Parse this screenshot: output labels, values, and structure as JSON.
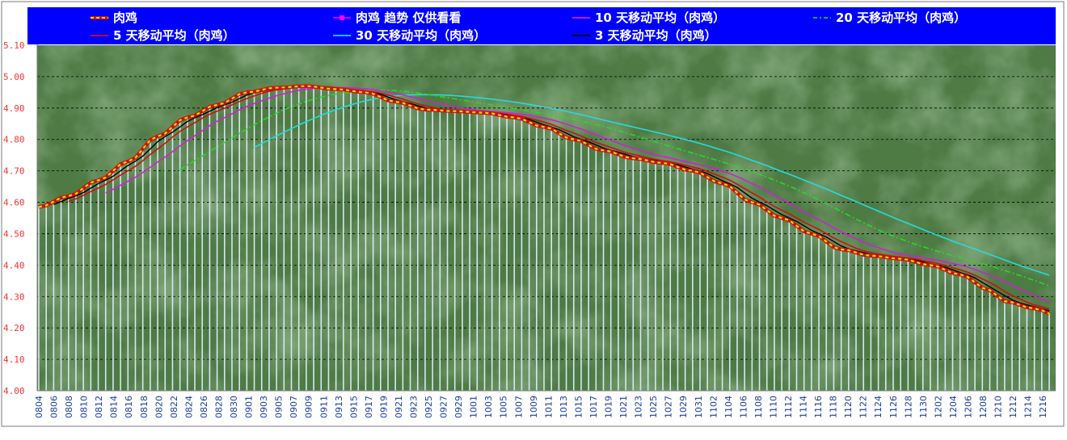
{
  "chart_data": {
    "type": "line",
    "y_range": [
      4.0,
      5.1
    ],
    "y_ticks": [
      "4.00",
      "4.10",
      "4.20",
      "4.30",
      "4.40",
      "4.50",
      "4.60",
      "4.70",
      "4.80",
      "4.90",
      "5.00",
      "5.10"
    ],
    "x_ticks": [
      "0804",
      "0806",
      "0808",
      "0810",
      "0812",
      "0814",
      "0816",
      "0818",
      "0820",
      "0822",
      "0824",
      "0826",
      "0828",
      "0830",
      "0901",
      "0903",
      "0905",
      "0907",
      "0909",
      "0911",
      "0913",
      "0915",
      "0917",
      "0919",
      "0921",
      "0923",
      "0925",
      "0927",
      "0929",
      "1001",
      "1003",
      "1005",
      "1007",
      "1009",
      "1011",
      "1013",
      "1015",
      "1017",
      "1019",
      "1021",
      "1023",
      "1025",
      "1027",
      "1029",
      "1031",
      "1102",
      "1104",
      "1106",
      "1108",
      "1110",
      "1112",
      "1114",
      "1116",
      "1118",
      "1120",
      "1122",
      "1124",
      "1126",
      "1128",
      "1130",
      "1202",
      "1204",
      "1206",
      "1208",
      "1210",
      "1212",
      "1214",
      "1216"
    ],
    "n_days": 137,
    "grid": true,
    "legend_position": "top",
    "background": "#4e7a44",
    "price_keypoints": [
      [
        0,
        4.585
      ],
      [
        4,
        4.62
      ],
      [
        8,
        4.67
      ],
      [
        12,
        4.73
      ],
      [
        16,
        4.81
      ],
      [
        20,
        4.87
      ],
      [
        24,
        4.91
      ],
      [
        28,
        4.95
      ],
      [
        32,
        4.965
      ],
      [
        36,
        4.97
      ],
      [
        40,
        4.96
      ],
      [
        44,
        4.95
      ],
      [
        48,
        4.92
      ],
      [
        52,
        4.895
      ],
      [
        56,
        4.89
      ],
      [
        60,
        4.885
      ],
      [
        64,
        4.87
      ],
      [
        68,
        4.84
      ],
      [
        72,
        4.8
      ],
      [
        76,
        4.765
      ],
      [
        80,
        4.74
      ],
      [
        84,
        4.725
      ],
      [
        88,
        4.7
      ],
      [
        92,
        4.66
      ],
      [
        96,
        4.6
      ],
      [
        100,
        4.55
      ],
      [
        104,
        4.5
      ],
      [
        108,
        4.45
      ],
      [
        112,
        4.43
      ],
      [
        116,
        4.42
      ],
      [
        120,
        4.4
      ],
      [
        124,
        4.37
      ],
      [
        128,
        4.32
      ],
      [
        130,
        4.285
      ],
      [
        134,
        4.262
      ],
      [
        137,
        4.24
      ]
    ],
    "series": [
      {
        "name": "肉鸡",
        "color": "#e8d800"
      },
      {
        "name": "肉鸡 趋势 仅供看看",
        "color": "#ff00ff"
      },
      {
        "name": "10 天移动平均（肉鸡）",
        "color": "#d020d0"
      },
      {
        "name": "20 天移动平均（肉鸡）",
        "color": "#22dd22"
      },
      {
        "name": "5 天移动平均（肉鸡）",
        "color": "#cc1111"
      },
      {
        "name": "30 天移动平均（肉鸡）",
        "color": "#22dddd"
      },
      {
        "name": "3 天移动平均（肉鸡）",
        "color": "#000000"
      }
    ]
  }
}
